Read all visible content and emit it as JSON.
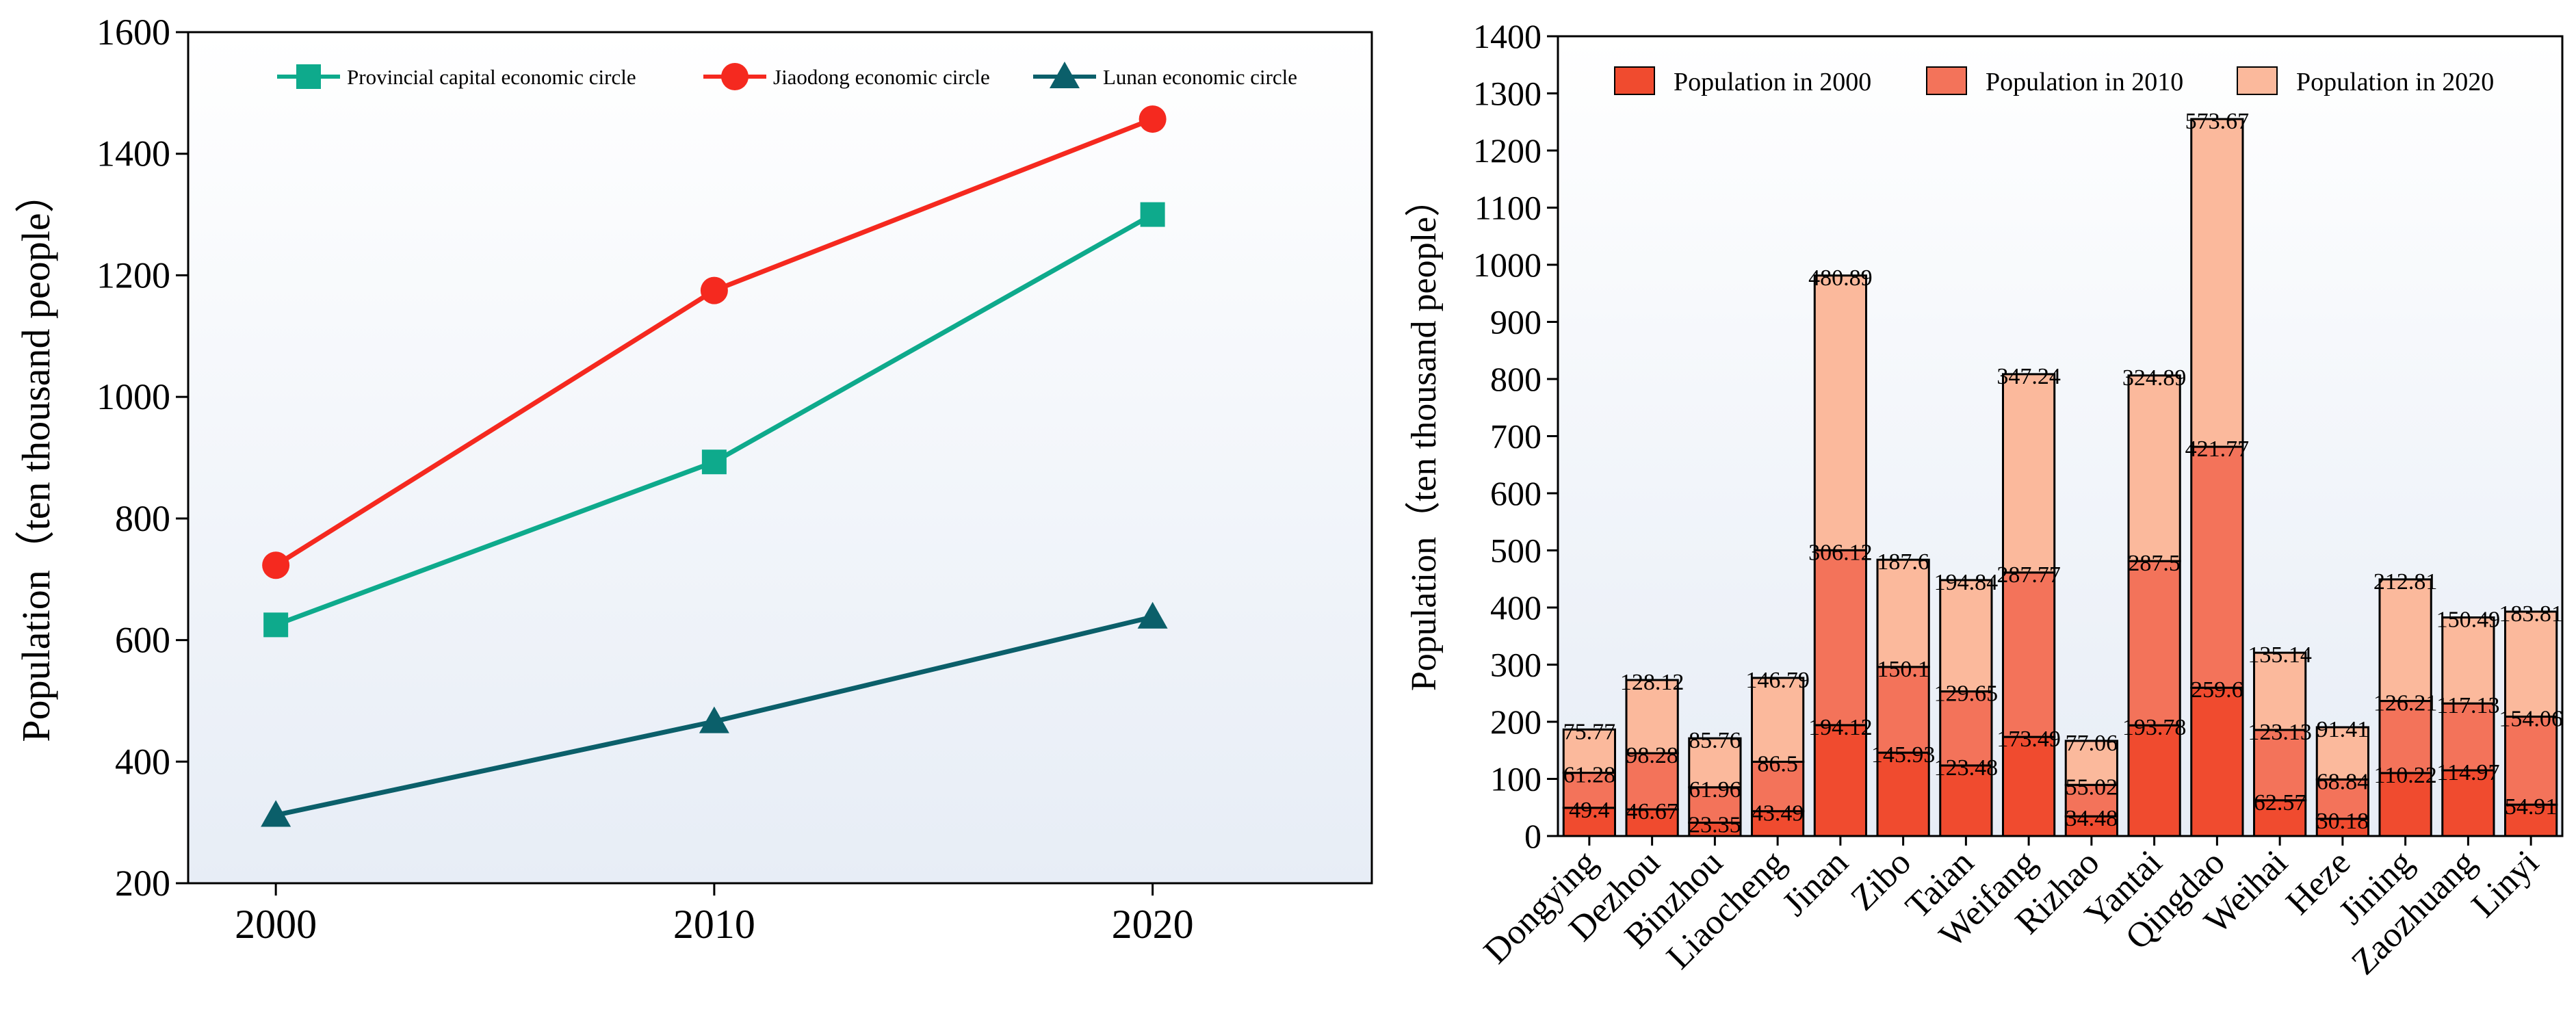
{
  "colors": {
    "line_series": [
      "#0eaa8c",
      "#f5291f",
      "#0b5f6a"
    ],
    "bar_series": [
      "#f04b2f",
      "#f3735a",
      "#fbb99c"
    ],
    "plot_bg_top": "#ffffff",
    "plot_bg_bottom": "#e7edf6"
  },
  "chart_data": [
    {
      "type": "line",
      "title": "",
      "xlabel": "",
      "ylabel": "Population（ten thousand people）",
      "x": [
        2000,
        2010,
        2020
      ],
      "x_tick_labels": [
        "2000",
        "2010",
        "2020"
      ],
      "xlim": [
        1998,
        2025
      ],
      "ylim": [
        200,
        1600
      ],
      "y_ticks": [
        200,
        400,
        600,
        800,
        1000,
        1200,
        1400,
        1600
      ],
      "legend_position": "top",
      "series": [
        {
          "name": "Provincial capital economic circle",
          "marker": "square",
          "values": [
            625,
            893,
            1300
          ]
        },
        {
          "name": "Jiaodong economic circle",
          "marker": "circle",
          "values": [
            723,
            1175,
            1457
          ]
        },
        {
          "name": "Lunan economic circle",
          "marker": "triangle",
          "values": [
            312,
            466,
            638
          ]
        }
      ]
    },
    {
      "type": "bar",
      "stacked": true,
      "title": "",
      "xlabel": "",
      "ylabel": "Population（ten thousand people）",
      "ylim": [
        0,
        1400
      ],
      "y_ticks": [
        0,
        100,
        200,
        300,
        400,
        500,
        600,
        700,
        800,
        900,
        1000,
        1100,
        1200,
        1300,
        1400
      ],
      "legend_position": "top",
      "categories": [
        "Dongying",
        "Dezhou",
        "Binzhou",
        "Liaocheng",
        "Jinan",
        "Zibo",
        "Taian",
        "Weifang",
        "Rizhao",
        "Yantai",
        "Qingdao",
        "Weihai",
        "Heze",
        "Jining",
        "Zaozhuang",
        "Linyi"
      ],
      "series": [
        {
          "name": "Population in 2000",
          "values": [
            49.4,
            46.67,
            23.35,
            43.49,
            194.12,
            145.93,
            123.48,
            173.49,
            34.48,
            193.78,
            259.6,
            62.57,
            30.18,
            110.22,
            114.97,
            54.91
          ]
        },
        {
          "name": "Population in 2010",
          "values": [
            61.28,
            98.28,
            61.96,
            86.5,
            306.12,
            150.1,
            129.65,
            287.77,
            55.02,
            287.5,
            421.77,
            123.13,
            68.84,
            126.21,
            117.13,
            154.06
          ]
        },
        {
          "name": "Population in 2020",
          "values": [
            75.77,
            128.12,
            85.76,
            146.79,
            480.89,
            187.6,
            194.84,
            347.24,
            77.06,
            324.89,
            573.67,
            135.14,
            91.41,
            212.81,
            150.49,
            183.81
          ]
        }
      ],
      "totals": [
        186.45,
        273.07,
        171.07,
        276.78,
        981.13,
        483.63,
        447.97,
        808.5,
        166.56,
        806.17,
        1255.04,
        320.84,
        190.43,
        449.24,
        382.59,
        392.78
      ]
    }
  ]
}
